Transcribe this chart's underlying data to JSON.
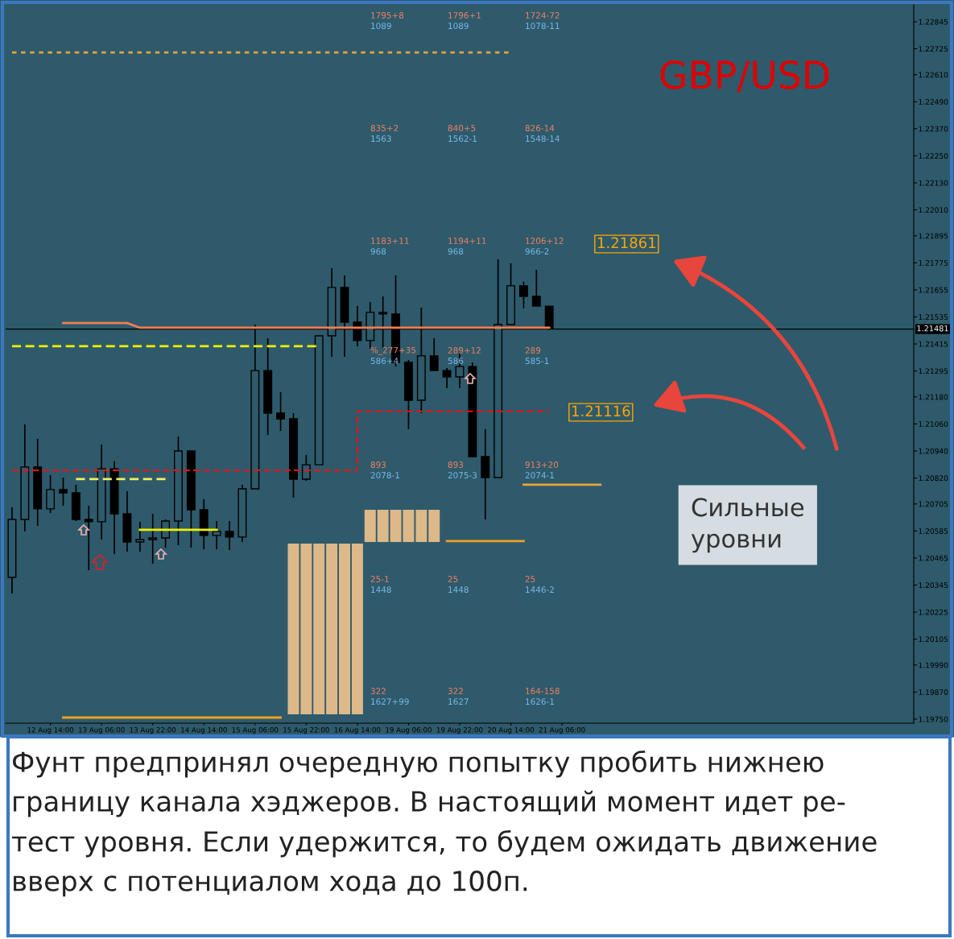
{
  "chart_data": {
    "type": "candlestick",
    "title": "GBP/USD",
    "categories": [
      null,
      null,
      null,
      "12 Aug 14:00",
      null,
      null,
      null,
      "13 Aug 06:00",
      null,
      null,
      null,
      "13 Aug 22:00",
      null,
      null,
      null,
      "14 Aug 14:00",
      null,
      null,
      null,
      "15 Aug 06:00",
      null,
      null,
      null,
      "15 Aug 22:00",
      null,
      null,
      null,
      "16 Aug 14:00",
      null,
      null,
      null,
      "19 Aug 06:00",
      null,
      null,
      null,
      "19 Aug 22:00",
      null,
      null,
      null,
      "20 Aug 14:00",
      null,
      null,
      null,
      "21 Aug 06:00",
      null,
      null,
      null,
      null,
      null,
      null,
      null,
      null,
      null,
      null,
      null,
      null,
      null,
      null,
      null,
      null,
      null,
      null,
      null,
      null,
      null,
      null,
      null,
      null,
      null,
      null,
      null
    ],
    "ohlc": [
      [
        1.20379,
        1.2069,
        1.20307,
        1.20636
      ],
      [
        1.20636,
        1.21058,
        1.20583,
        1.20869
      ],
      [
        1.20869,
        1.20994,
        1.20608,
        1.20683
      ],
      [
        1.20683,
        1.20833,
        1.20665,
        1.20769
      ],
      [
        1.20769,
        1.20822,
        1.20697,
        1.20754
      ],
      [
        1.20754,
        1.2079,
        1.20629,
        1.20636
      ],
      [
        1.20636,
        1.20697,
        1.20411,
        1.20626
      ],
      [
        1.20626,
        1.20969,
        1.20547,
        1.20861
      ],
      [
        1.20861,
        1.20894,
        1.20483,
        1.20661
      ],
      [
        1.20661,
        1.20761,
        1.20493,
        1.20536
      ],
      [
        1.20536,
        1.20626,
        1.20493,
        1.20547
      ],
      [
        1.20547,
        1.20661,
        1.2044,
        1.20554
      ],
      [
        1.20554,
        1.20636,
        1.20511,
        1.20629
      ],
      [
        1.20629,
        1.21004,
        1.20522,
        1.2094
      ],
      [
        1.2094,
        1.2094,
        1.20511,
        1.20679
      ],
      [
        1.20679,
        1.20726,
        1.20504,
        1.20565
      ],
      [
        1.20565,
        1.20629,
        1.20504,
        1.20583
      ],
      [
        1.20583,
        1.20629,
        1.205,
        1.20558
      ],
      [
        1.20558,
        1.2079,
        1.20536,
        1.20772
      ],
      [
        1.20772,
        1.21501,
        1.20772,
        1.21297
      ],
      [
        1.21297,
        1.2144,
        1.21011,
        1.21108
      ],
      [
        1.21108,
        1.21201,
        1.21029,
        1.21083
      ],
      [
        1.21083,
        1.21108,
        1.20733,
        1.20815
      ],
      [
        1.20815,
        1.20922,
        1.20808,
        1.20879
      ],
      [
        1.20879,
        1.21451,
        1.20879,
        1.21451
      ],
      [
        1.21451,
        1.21751,
        1.21358,
        1.21666
      ],
      [
        1.21666,
        1.21719,
        1.21358,
        1.21512
      ],
      [
        1.21512,
        1.21583,
        1.21405,
        1.2143
      ],
      [
        1.2143,
        1.21601,
        1.21394,
        1.21555
      ],
      [
        1.21555,
        1.21626,
        1.21398,
        1.21548
      ],
      [
        1.21548,
        1.21719,
        1.21315,
        1.21333
      ],
      [
        1.21333,
        1.21344,
        1.21037,
        1.21165
      ],
      [
        1.21165,
        1.21576,
        1.21108,
        1.21362
      ],
      [
        1.21362,
        1.2144,
        1.21297,
        1.21297
      ],
      [
        1.21297,
        1.21308,
        1.21219,
        1.21269
      ],
      [
        1.21269,
        1.21376,
        1.21219,
        1.21315
      ],
      [
        1.21315,
        1.21333,
        1.20911,
        1.20915
      ],
      [
        1.20915,
        1.21037,
        1.20636,
        1.20822
      ],
      [
        1.20822,
        1.21791,
        1.20822,
        1.21501
      ],
      [
        1.21501,
        1.21773,
        1.21501,
        1.21673
      ],
      [
        1.21673,
        1.21691,
        1.21573,
        1.21626
      ],
      [
        1.21626,
        1.21744,
        1.21583,
        1.21583
      ],
      [
        1.21583,
        1.21583,
        1.21476,
        1.21483
      ],
      null,
      null,
      null,
      null,
      null,
      null,
      null,
      null,
      null,
      null,
      null,
      null,
      null,
      null,
      null,
      null,
      null,
      null,
      null,
      null,
      null,
      null,
      null,
      null,
      null,
      null,
      null,
      null
    ],
    "series": [
      {
        "type": "bar",
        "color": "#ddb98a",
        "values": [
          null,
          null,
          null,
          null,
          null,
          null,
          null,
          null,
          null,
          null,
          null,
          null,
          null,
          null,
          null,
          null,
          null,
          null,
          null,
          null,
          null,
          null,
          0.00758,
          0.00758,
          0.00758,
          0.00758,
          0.00758,
          0.00758,
          0.00143,
          0.00143,
          0.00143,
          0.00143,
          0.00143,
          0.00143,
          null,
          null,
          null,
          null,
          null,
          null,
          null,
          null,
          null,
          null,
          null,
          null,
          null,
          null,
          null,
          null,
          null,
          null,
          null,
          null,
          null,
          null,
          null,
          null,
          null,
          null,
          null,
          null,
          null,
          null,
          null,
          null,
          null,
          null,
          null,
          null,
          null
        ],
        "base": [
          null,
          null,
          null,
          null,
          null,
          null,
          null,
          null,
          null,
          null,
          null,
          null,
          null,
          null,
          null,
          null,
          null,
          null,
          null,
          null,
          null,
          null,
          1.19771,
          1.19771,
          1.19771,
          1.19771,
          1.19771,
          1.19771,
          1.20536,
          1.20536,
          1.20536,
          1.20536,
          1.20536,
          1.20536,
          null,
          null,
          null,
          null,
          null,
          null,
          null,
          null,
          null,
          null,
          null,
          null,
          null,
          null,
          null,
          null,
          null,
          null,
          null,
          null,
          null,
          null,
          null,
          null,
          null,
          null,
          null,
          null,
          null,
          null,
          null,
          null,
          null,
          null,
          null,
          null,
          null
        ]
      },
      {
        "type": "line",
        "color": "#f47c50",
        "line_style": "solid",
        "values": [
          null,
          null,
          null,
          null,
          1.21508,
          1.21508,
          1.21508,
          1.21508,
          1.21508,
          1.21508,
          1.21487,
          1.21487,
          1.21487,
          1.21487,
          1.21487,
          1.21487,
          1.21487,
          1.21487,
          1.21487,
          1.21487,
          1.21487,
          1.21487,
          1.21487,
          1.21487,
          1.21487,
          1.21487,
          1.21487,
          1.21487,
          1.21487,
          1.21487,
          1.21487,
          1.21487,
          1.21487,
          1.21487,
          1.21487,
          1.21487,
          1.21487,
          1.21487,
          1.21487,
          1.21487,
          1.21487,
          1.21487,
          1.21487,
          null,
          null,
          null,
          null,
          null,
          null,
          null,
          null,
          null,
          null,
          null,
          null,
          null,
          null,
          null,
          null,
          null,
          null,
          null,
          null,
          null,
          null,
          null,
          null,
          null,
          null,
          null,
          null
        ]
      },
      {
        "type": "line",
        "color": "#f0f000",
        "line_style": "dashed",
        "values": [
          1.21405,
          1.21405,
          1.21405,
          1.21405,
          1.21405,
          1.21405,
          1.21405,
          1.21405,
          1.21405,
          1.21405,
          1.21405,
          1.21405,
          1.21405,
          1.21405,
          1.21405,
          1.21405,
          1.21405,
          1.21405,
          1.21405,
          1.21405,
          1.21405,
          1.21405,
          1.21405,
          1.21405,
          1.21405,
          null,
          null,
          null,
          null,
          null,
          null,
          null,
          null,
          null,
          null,
          null,
          null,
          null,
          null,
          null,
          null,
          null,
          null,
          null,
          null,
          null,
          null,
          null,
          null,
          null,
          null,
          null,
          null,
          null,
          null,
          null,
          null,
          null,
          null,
          null,
          null,
          null,
          null,
          null,
          null,
          null,
          null,
          null,
          null,
          null,
          null
        ]
      },
      {
        "type": "step",
        "color": "#ee1111",
        "line_style": "dashed",
        "values": [
          1.20854,
          1.20854,
          1.20854,
          1.20854,
          1.20854,
          1.20854,
          1.20854,
          1.20854,
          1.20854,
          1.20854,
          1.20854,
          1.20854,
          1.20854,
          1.20854,
          1.20854,
          1.20854,
          1.20854,
          1.20854,
          1.20854,
          1.20854,
          1.20854,
          1.20854,
          1.20854,
          1.20854,
          1.20854,
          1.20854,
          1.20854,
          1.20854,
          1.21116,
          1.21116,
          1.21116,
          1.21116,
          1.21116,
          1.21116,
          1.21116,
          1.21116,
          1.21116,
          1.21116,
          1.21116,
          1.21116,
          1.21116,
          1.21116,
          1.21116,
          null,
          null,
          null,
          null,
          null,
          null,
          null,
          null,
          null,
          null,
          null,
          null,
          null,
          null,
          null,
          null,
          null,
          null,
          null,
          null,
          null,
          null,
          null,
          null,
          null,
          null,
          null,
          null
        ]
      },
      {
        "type": "line",
        "color": "#e8a33c",
        "line_style": "dotted",
        "values": [
          1.22709,
          1.22709,
          1.22709,
          1.22709,
          1.22709,
          1.22709,
          1.22709,
          1.22709,
          1.22709,
          1.22709,
          1.22709,
          1.22709,
          1.22709,
          1.22709,
          1.22709,
          1.22709,
          1.22709,
          1.22709,
          1.22709,
          1.22709,
          1.22709,
          1.22709,
          1.22709,
          1.22709,
          1.22709,
          1.22709,
          1.22709,
          1.22709,
          1.22709,
          1.22709,
          1.22709,
          1.22709,
          1.22709,
          1.22709,
          1.22709,
          1.22709,
          1.22709,
          1.22709,
          1.22709,
          1.22709,
          null,
          null,
          null,
          null,
          null,
          null,
          null,
          null,
          null,
          null,
          null,
          null,
          null,
          null,
          null,
          null,
          null,
          null,
          null,
          null,
          null,
          null,
          null,
          null,
          null,
          null,
          null,
          null,
          null,
          null,
          null
        ]
      },
      {
        "type": "line",
        "color": "#f0f060",
        "line_style": "dashed",
        "values": [
          null,
          null,
          null,
          null,
          null,
          1.20815,
          1.20815,
          1.20815,
          1.20815,
          1.20815,
          1.20815,
          1.20815,
          1.20815,
          null,
          null,
          null,
          null,
          null,
          null,
          null,
          null,
          null,
          null,
          null,
          null,
          null,
          null,
          null,
          null,
          null,
          null,
          null,
          null,
          null,
          null,
          null,
          null,
          null,
          null,
          null,
          null,
          null,
          null,
          null,
          null,
          null,
          null,
          null,
          null,
          null,
          null,
          null,
          null,
          null,
          null,
          null,
          null,
          null,
          null,
          null,
          null,
          null,
          null,
          null,
          null,
          null,
          null,
          null,
          null,
          null,
          null
        ]
      },
      {
        "type": "line",
        "color": "#f0f000",
        "line_style": "solid",
        "values": [
          null,
          null,
          null,
          null,
          null,
          null,
          null,
          null,
          null,
          null,
          1.2059,
          1.2059,
          1.2059,
          1.2059,
          1.2059,
          1.2059,
          1.2059,
          null,
          null,
          null,
          null,
          null,
          null,
          null,
          null,
          null,
          null,
          null,
          null,
          null,
          null,
          null,
          null,
          null,
          null,
          null,
          null,
          null,
          null,
          null,
          null,
          null,
          null,
          null,
          null,
          null,
          null,
          null,
          null,
          null,
          null,
          null,
          null,
          null,
          null,
          null,
          null,
          null,
          null,
          null,
          null,
          null,
          null,
          null,
          null,
          null,
          null,
          null,
          null,
          null,
          null
        ]
      },
      {
        "type": "line",
        "color": "#f0a020",
        "line_style": "solid",
        "values": [
          null,
          null,
          null,
          null,
          null,
          null,
          null,
          null,
          null,
          null,
          null,
          null,
          null,
          null,
          null,
          null,
          null,
          null,
          null,
          null,
          null,
          null,
          null,
          null,
          null,
          null,
          null,
          null,
          null,
          null,
          null,
          null,
          null,
          null,
          1.2054,
          1.2054,
          1.2054,
          1.2054,
          1.2054,
          1.2054,
          1.2054,
          null,
          null,
          null,
          null,
          null,
          null,
          null,
          null,
          null,
          null,
          null,
          null,
          null,
          null,
          null,
          null,
          null,
          null,
          null,
          null,
          null,
          null,
          null,
          null,
          null,
          null,
          null,
          null,
          null,
          null
        ]
      },
      {
        "type": "line",
        "color": "#e8a33c",
        "line_style": "solid",
        "values": [
          null,
          null,
          null,
          null,
          null,
          null,
          null,
          null,
          null,
          null,
          null,
          null,
          null,
          null,
          null,
          null,
          null,
          null,
          null,
          null,
          null,
          null,
          null,
          null,
          null,
          null,
          null,
          null,
          null,
          null,
          null,
          null,
          null,
          null,
          null,
          null,
          null,
          null,
          null,
          null,
          1.2079,
          1.2079,
          1.2079,
          1.2079,
          1.2079,
          1.2079,
          1.2079,
          null,
          null,
          null,
          null,
          null,
          null,
          null,
          null,
          null,
          null,
          null,
          null,
          null,
          null,
          null,
          null,
          null,
          null,
          null,
          null,
          null,
          null,
          null,
          null
        ]
      },
      {
        "type": "line",
        "color": "#f0a020",
        "line_style": "solid",
        "values": [
          null,
          null,
          null,
          null,
          1.19757,
          1.19757,
          1.19757,
          1.19757,
          1.19757,
          1.19757,
          1.19757,
          1.19757,
          1.19757,
          1.19757,
          1.19757,
          1.19757,
          1.19757,
          1.19757,
          1.19757,
          1.19757,
          1.19757,
          1.19757,
          null,
          null,
          null,
          null,
          null,
          null,
          null,
          null,
          null,
          null,
          null,
          null,
          null,
          null,
          null,
          null,
          null,
          null,
          null,
          null,
          null,
          null,
          null,
          null,
          null,
          null,
          null,
          null,
          null,
          null,
          null,
          null,
          null,
          null,
          null,
          null,
          null,
          null,
          null,
          null,
          null,
          null,
          null,
          null,
          null,
          null,
          null,
          null,
          null
        ]
      }
    ],
    "ref_lines": [
      {
        "axis": "y",
        "value": 1.21481,
        "label": "1.21481",
        "color": "#000000"
      }
    ],
    "ylim": [
      1.19732,
      1.2292
    ],
    "yticks": [
      1.22845,
      {
        "value": 1.22725,
        "label": "1.22725"
      },
      {
        "value": 1.2261,
        "label": "1.22610"
      },
      {
        "value": 1.2249,
        "label": "1.22490"
      },
      {
        "value": 1.2237,
        "label": "1.22370"
      },
      {
        "value": 1.2225,
        "label": "1.22250"
      },
      {
        "value": 1.2213,
        "label": "1.22130"
      },
      {
        "value": 1.2201,
        "label": "1.22010"
      },
      1.21895,
      1.21775,
      1.21655,
      1.21535,
      1.21415,
      1.21295,
      {
        "value": 1.2118,
        "label": "1.21180"
      },
      {
        "value": 1.2106,
        "label": "1.21060"
      },
      {
        "value": 1.2094,
        "label": "1.20940"
      },
      {
        "value": 1.2082,
        "label": "1.20820"
      },
      1.20705,
      1.20585,
      1.20465,
      1.20345,
      1.20225,
      1.20105,
      {
        "value": 1.1999,
        "label": "1.19990"
      },
      {
        "value": 1.1987,
        "label": "1.19870"
      },
      {
        "value": 1.1975,
        "label": "1.19750"
      }
    ],
    "annotations": [
      "1795+8",
      "1089",
      "1796+1",
      "1089",
      "1724-72",
      "1078-11",
      "835+2",
      "1563",
      "840+5",
      "1562-1",
      "826-14",
      "1548-14",
      "1183+11",
      "968",
      "1194+11",
      "968",
      "1206+12",
      "966-2",
      "%_277+35",
      "586+4",
      "289+12",
      "586",
      "289",
      "585-1",
      "893",
      "2078-1",
      "893",
      "2075-3",
      "913+20",
      "2074-1",
      "25-1",
      "1448",
      "25",
      "1448",
      "25",
      "1446-2",
      "322",
      "1627+99",
      "322",
      "1627",
      "164-158",
      "1626-1",
      "1.21861",
      "1.21116",
      "Сильные\nуровни",
      "Фунт предпринял очередную попытку пробить нижнею\nграницу канала хэджеров. В настоящий момент идет ре-\nтест уровня. Если удержится, то будем ожидать движение\nвверх с потенциалом хода до 100п."
    ]
  }
}
